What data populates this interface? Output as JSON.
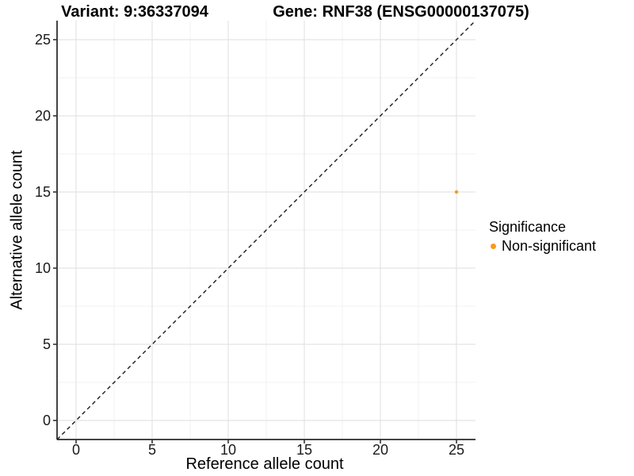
{
  "chart_data": {
    "type": "scatter",
    "title_left": "Variant: 9:36337094",
    "title_right": "Gene: RNF38 (ENSG00000137075)",
    "xlabel": "Reference allele count",
    "ylabel": "Alternative allele count",
    "xlim": [
      -1.25,
      26.25
    ],
    "ylim": [
      -1.25,
      26.25
    ],
    "xticks": [
      0,
      5,
      10,
      15,
      20,
      25
    ],
    "yticks": [
      0,
      5,
      10,
      15,
      20,
      25
    ],
    "xminor": [
      2.5,
      7.5,
      12.5,
      17.5,
      22.5
    ],
    "yminor": [
      2.5,
      7.5,
      12.5,
      17.5,
      22.5
    ],
    "grid": "major+minor",
    "reference_line": {
      "equation": "y = x",
      "style": "dashed",
      "color": "#1a1a1a"
    },
    "series": [
      {
        "name": "Non-significant",
        "color": "#F9991D",
        "points": [
          {
            "x": 25,
            "y": 15
          }
        ]
      }
    ],
    "legend": {
      "title": "Significance",
      "position": "right",
      "items": [
        {
          "label": "Non-significant",
          "color": "#F9991D"
        }
      ]
    },
    "colors": {
      "background": "#ffffff",
      "axis_line": "#444444",
      "tick_mark": "#333333",
      "grid_major": "#e4e4e4",
      "grid_minor": "#f0f0f0",
      "tick_label": "#1a1a1a",
      "point": "#F9991D"
    }
  }
}
